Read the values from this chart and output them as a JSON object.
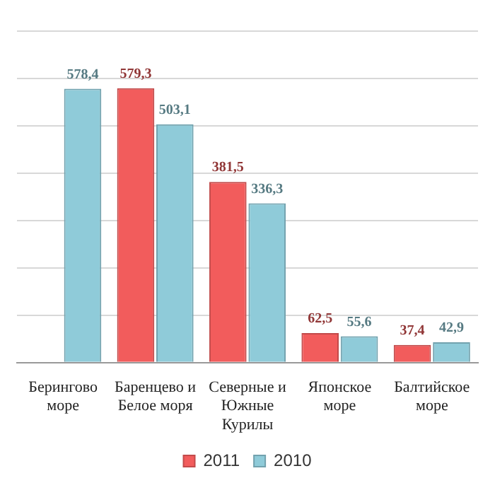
{
  "chart_data": {
    "type": "bar",
    "categories": [
      "Берингово море",
      "Баренцево и Белое моря",
      "Северные и Южные Курилы",
      "Японское море",
      "Балтийское море"
    ],
    "series": [
      {
        "name": "2011",
        "color": "#f25c5c",
        "values": [
          null,
          579.3,
          381.5,
          62.5,
          37.4
        ],
        "value_labels": [
          null,
          "579,3",
          "381,5",
          "62,5",
          "37,4"
        ]
      },
      {
        "name": "2010",
        "color": "#8fcbd9",
        "values": [
          578.4,
          503.1,
          336.3,
          55.6,
          42.9
        ],
        "value_labels": [
          "578,4",
          "503,1",
          "336,3",
          "55,6",
          "42,9"
        ]
      }
    ],
    "ylim": [
      0,
      700
    ],
    "yticks": [
      {
        "value": 0,
        "label": null
      },
      {
        "value": 100,
        "label": null
      },
      {
        "value": 200,
        "label": null
      },
      {
        "value": 300,
        "label": null
      },
      {
        "value": 400,
        "label": null
      },
      {
        "value": 500,
        "label": null
      },
      {
        "value": 600,
        "label": null
      },
      {
        "value": 700,
        "label": null
      }
    ],
    "grid": "y",
    "tick_labels": "x",
    "legend": "bottom"
  }
}
